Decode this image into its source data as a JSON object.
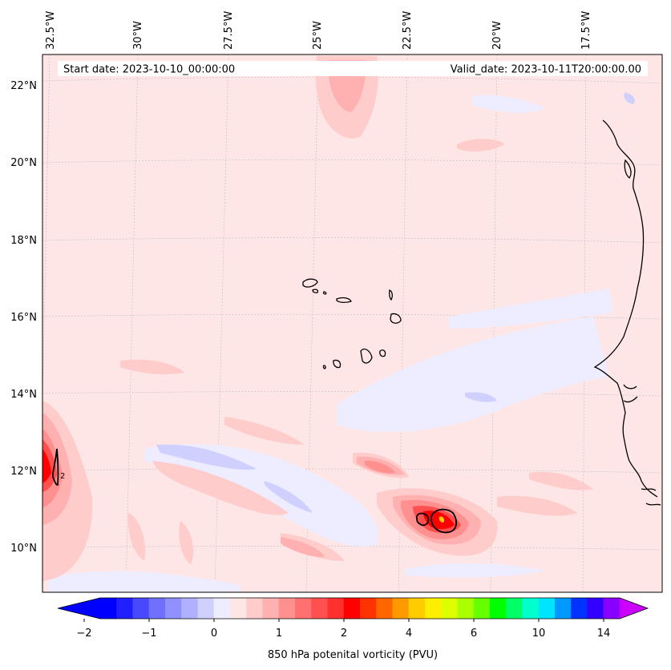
{
  "map": {
    "start_date": "Start date: 2023-10-10_00:00:00",
    "valid_date": "Valid_date: 2023-10-11T20:00:00.00",
    "lon_labels": [
      "32.5°W",
      "30°W",
      "27.5°W",
      "25°W",
      "22.5°W",
      "20°W",
      "17.5°W"
    ],
    "lat_labels": [
      "22°N",
      "20°N",
      "18°N",
      "16°N",
      "14°N",
      "12°N",
      "10°N"
    ],
    "contour_label": "2"
  },
  "colorbar": {
    "label": "850 hPa potenital vorticity (PVU)",
    "ticks": [
      "−2",
      "−1",
      "0",
      "1",
      "2",
      "4",
      "6",
      "10",
      "14"
    ],
    "colors": [
      "#0000ff",
      "#2020ff",
      "#4848ff",
      "#7070ff",
      "#9090ff",
      "#b0b0ff",
      "#d0d0ff",
      "#ededff",
      "#ffe6e6",
      "#ffcccc",
      "#ffb0b0",
      "#ff9090",
      "#ff7070",
      "#ff5050",
      "#ff3030",
      "#ff0000",
      "#ff3300",
      "#ff6600",
      "#ff9900",
      "#ffcc00",
      "#ffee00",
      "#ddff00",
      "#aaff00",
      "#66ff00",
      "#00ff00",
      "#00ff66",
      "#00ffcc",
      "#00e5ff",
      "#0099ff",
      "#0033ff",
      "#3300ff",
      "#8800ff"
    ],
    "under_color": "#0000ff",
    "over_color": "#cc00ff"
  }
}
